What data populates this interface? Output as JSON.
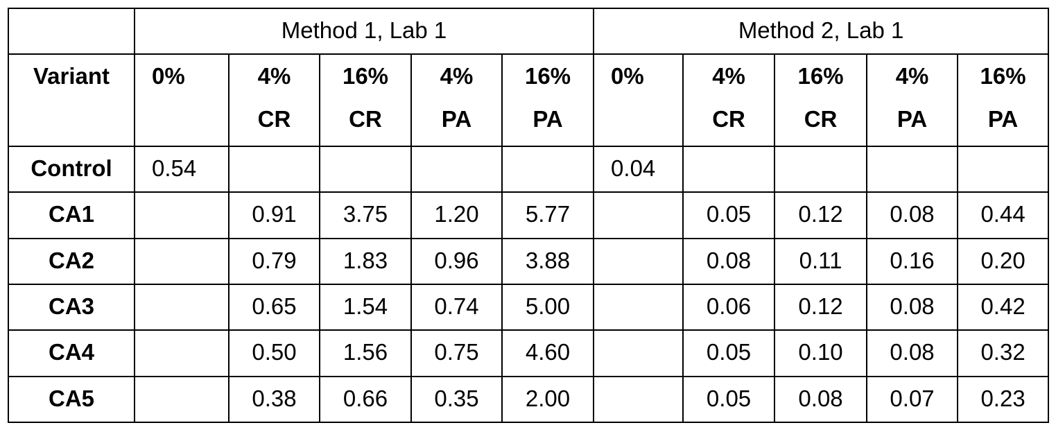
{
  "table": {
    "groups": [
      "Method 1, Lab 1",
      "Method 2, Lab 1"
    ],
    "headers": {
      "variant": "Variant",
      "columns": [
        [
          "0%",
          ""
        ],
        [
          "4%",
          "CR"
        ],
        [
          "16%",
          "CR"
        ],
        [
          "4%",
          "PA"
        ],
        [
          "16%",
          "PA"
        ],
        [
          "0%",
          ""
        ],
        [
          "4%",
          "CR"
        ],
        [
          "16%",
          "CR"
        ],
        [
          "4%",
          "PA"
        ],
        [
          "16%",
          "PA"
        ]
      ]
    },
    "rows": [
      {
        "variant": "Control",
        "values": [
          "0.54",
          "",
          "",
          "",
          "",
          "0.04",
          "",
          "",
          "",
          ""
        ]
      },
      {
        "variant": "CA1",
        "values": [
          "",
          "0.91",
          "3.75",
          "1.20",
          "5.77",
          "",
          "0.05",
          "0.12",
          "0.08",
          "0.44"
        ]
      },
      {
        "variant": "CA2",
        "values": [
          "",
          "0.79",
          "1.83",
          "0.96",
          "3.88",
          "",
          "0.08",
          "0.11",
          "0.16",
          "0.20"
        ]
      },
      {
        "variant": "CA3",
        "values": [
          "",
          "0.65",
          "1.54",
          "0.74",
          "5.00",
          "",
          "0.06",
          "0.12",
          "0.08",
          "0.42"
        ]
      },
      {
        "variant": "CA4",
        "values": [
          "",
          "0.50",
          "1.56",
          "0.75",
          "4.60",
          "",
          "0.05",
          "0.10",
          "0.08",
          "0.32"
        ]
      },
      {
        "variant": "CA5",
        "values": [
          "",
          "0.38",
          "0.66",
          "0.35",
          "2.00",
          "",
          "0.05",
          "0.08",
          "0.07",
          "0.23"
        ]
      }
    ]
  }
}
